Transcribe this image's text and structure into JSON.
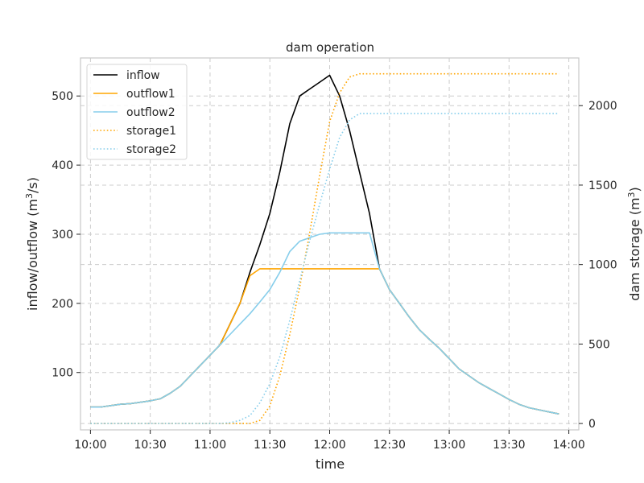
{
  "chart_data": {
    "type": "line",
    "title": "dam operation",
    "xlabel": "time",
    "ylabel_left": {
      "base": "inflow/outflow (m",
      "sup": "3",
      "tail": "/s)"
    },
    "ylabel_right": {
      "base": "dam storage (m",
      "sup": "3",
      "tail": ")"
    },
    "x_ticks": [
      {
        "t": "10:00",
        "label": "10:00"
      },
      {
        "t": "10:30",
        "label": "10:30"
      },
      {
        "t": "11:00",
        "label": "11:00"
      },
      {
        "t": "11:30",
        "label": "11:30"
      },
      {
        "t": "12:00",
        "label": "12:00"
      },
      {
        "t": "12:30",
        "label": "12:30"
      },
      {
        "t": "13:00",
        "label": "13:00"
      },
      {
        "t": "13:30",
        "label": "13:30"
      },
      {
        "t": "14:00",
        "label": "14:00"
      }
    ],
    "xlim": [
      "09:55",
      "14:05"
    ],
    "ylim_left": [
      17,
      555
    ],
    "yticks_left": [
      100,
      200,
      300,
      400,
      500
    ],
    "ylim_right": [
      -40,
      2300
    ],
    "yticks_right": [
      0,
      500,
      1000,
      1500,
      2000
    ],
    "grid": true,
    "legend_position": "top-left",
    "x": [
      "10:00",
      "10:05",
      "10:10",
      "10:15",
      "10:20",
      "10:25",
      "10:30",
      "10:35",
      "10:40",
      "10:45",
      "10:50",
      "10:55",
      "11:00",
      "11:05",
      "11:10",
      "11:15",
      "11:20",
      "11:25",
      "11:30",
      "11:35",
      "11:40",
      "11:45",
      "11:50",
      "11:55",
      "12:00",
      "12:05",
      "12:10",
      "12:15",
      "12:20",
      "12:25",
      "12:30",
      "12:35",
      "12:40",
      "12:45",
      "12:50",
      "12:55",
      "13:00",
      "13:05",
      "13:10",
      "13:15",
      "13:20",
      "13:25",
      "13:30",
      "13:35",
      "13:40",
      "13:45",
      "13:50",
      "13:55"
    ],
    "series": [
      {
        "name": "inflow",
        "axis": "left",
        "color": "#000000",
        "dash": "solid",
        "values": [
          50,
          50,
          52,
          54,
          55,
          57,
          59,
          62,
          70,
          80,
          95,
          110,
          125,
          140,
          170,
          200,
          245,
          285,
          330,
          390,
          460,
          500,
          510,
          520,
          530,
          500,
          450,
          390,
          330,
          250,
          220,
          200,
          180,
          162,
          148,
          135,
          120,
          105,
          95,
          85,
          77,
          69,
          61,
          54,
          49,
          46,
          43,
          40
        ]
      },
      {
        "name": "outflow1",
        "axis": "left",
        "color": "#ffa500",
        "dash": "solid",
        "values": [
          50,
          50,
          52,
          54,
          55,
          57,
          59,
          62,
          70,
          80,
          95,
          110,
          125,
          140,
          170,
          200,
          240,
          250,
          250,
          250,
          250,
          250,
          250,
          250,
          250,
          250,
          250,
          250,
          250,
          250,
          220,
          200,
          180,
          162,
          148,
          135,
          120,
          105,
          95,
          85,
          77,
          69,
          61,
          54,
          49,
          46,
          43,
          40
        ]
      },
      {
        "name": "outflow2",
        "axis": "left",
        "color": "#87ceeb",
        "dash": "solid",
        "values": [
          50,
          50,
          52,
          54,
          55,
          57,
          59,
          62,
          70,
          80,
          95,
          110,
          125,
          140,
          155,
          170,
          185,
          202,
          220,
          245,
          275,
          290,
          295,
          300,
          302,
          302,
          302,
          302,
          302,
          250,
          220,
          200,
          180,
          162,
          148,
          135,
          120,
          105,
          95,
          85,
          77,
          69,
          61,
          54,
          49,
          46,
          43,
          40
        ]
      },
      {
        "name": "storage1",
        "axis": "right",
        "color": "#ffa500",
        "dash": "dotted",
        "values": [
          0,
          0,
          0,
          0,
          0,
          0,
          0,
          0,
          0,
          0,
          0,
          0,
          0,
          0,
          0,
          0,
          0,
          20,
          110,
          300,
          560,
          860,
          1200,
          1560,
          1900,
          2080,
          2180,
          2200,
          2200,
          2200,
          2200,
          2200,
          2200,
          2200,
          2200,
          2200,
          2200,
          2200,
          2200,
          2200,
          2200,
          2200,
          2200,
          2200,
          2200,
          2200,
          2200,
          2200
        ]
      },
      {
        "name": "storage2",
        "axis": "right",
        "color": "#87ceeb",
        "dash": "dotted",
        "values": [
          0,
          0,
          0,
          0,
          0,
          0,
          0,
          0,
          0,
          0,
          0,
          0,
          0,
          0,
          5,
          20,
          50,
          130,
          250,
          420,
          650,
          900,
          1150,
          1380,
          1600,
          1800,
          1910,
          1950,
          1950,
          1950,
          1950,
          1950,
          1950,
          1950,
          1950,
          1950,
          1950,
          1950,
          1950,
          1950,
          1950,
          1950,
          1950,
          1950,
          1950,
          1950,
          1950,
          1950
        ]
      }
    ]
  }
}
